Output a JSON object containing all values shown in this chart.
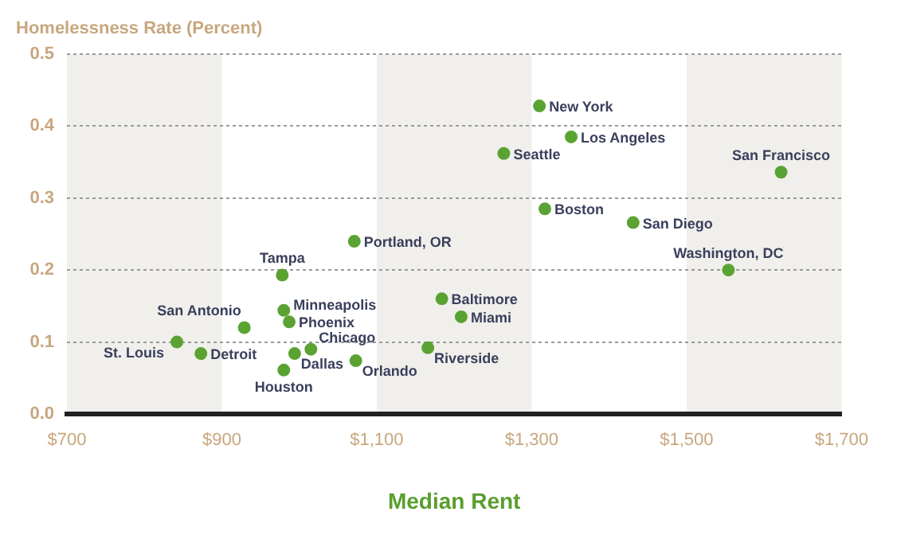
{
  "chart_data": {
    "type": "scatter",
    "ylabel": "Homelessness Rate (Percent)",
    "xlabel": "Median Rent",
    "xlim": [
      700,
      1700
    ],
    "xticks": [
      {
        "value": 700,
        "label": "$700"
      },
      {
        "value": 900,
        "label": "$900"
      },
      {
        "value": 1100,
        "label": "$1,100"
      },
      {
        "value": 1300,
        "label": "$1,300"
      },
      {
        "value": 1500,
        "label": "$1,500"
      },
      {
        "value": 1700,
        "label": "$1,700"
      }
    ],
    "ylim": [
      0,
      0.5
    ],
    "yticks": [
      {
        "value": 0,
        "label": "0.0"
      },
      0.1,
      0.2,
      0.3,
      0.4,
      0.5
    ],
    "grid": "y",
    "marker": "circle",
    "legend": false,
    "x": [
      842,
      873,
      929,
      978,
      980,
      987,
      980,
      994,
      1015,
      1071,
      1073,
      1166,
      1184,
      1209,
      1264,
      1310,
      1317,
      1351,
      1431,
      1554,
      1622
    ],
    "series": [
      {
        "color": "#5aa332",
        "values": [
          0.1,
          0.084,
          0.12,
          0.193,
          0.144,
          0.128,
          0.061,
          0.084,
          0.09,
          0.24,
          0.074,
          0.092,
          0.16,
          0.135,
          0.362,
          0.428,
          0.285,
          0.385,
          0.266,
          0.2,
          0.336
        ]
      }
    ],
    "bands": [
      {
        "axis": "x",
        "from": 700,
        "to": 900,
        "color": "#f0efeb"
      },
      {
        "axis": "x",
        "from": 1100,
        "to": 1300,
        "color": "#f0efeb"
      },
      {
        "axis": "x",
        "from": 1500,
        "to": 1700,
        "color": "#f0efeb"
      }
    ],
    "annotations": [
      {
        "text": "St. Louis",
        "x": 842,
        "y": 0.1
      },
      {
        "text": "Detroit",
        "x": 873,
        "y": 0.084
      },
      {
        "text": "San Antonio",
        "x": 929,
        "y": 0.12
      },
      {
        "text": "Tampa",
        "x": 978,
        "y": 0.193
      },
      {
        "text": "Minneapolis",
        "x": 980,
        "y": 0.144
      },
      {
        "text": "Phoenix",
        "x": 987,
        "y": 0.128
      },
      {
        "text": "Houston",
        "x": 980,
        "y": 0.061
      },
      {
        "text": "Dallas",
        "x": 994,
        "y": 0.084
      },
      {
        "text": "Chicago",
        "x": 1015,
        "y": 0.09
      },
      {
        "text": "Portland, OR",
        "x": 1071,
        "y": 0.24
      },
      {
        "text": "Orlando",
        "x": 1073,
        "y": 0.074
      },
      {
        "text": "Riverside",
        "x": 1166,
        "y": 0.092
      },
      {
        "text": "Baltimore",
        "x": 1184,
        "y": 0.16
      },
      {
        "text": "Miami",
        "x": 1209,
        "y": 0.135
      },
      {
        "text": "Seattle",
        "x": 1264,
        "y": 0.362
      },
      {
        "text": "New York",
        "x": 1310,
        "y": 0.428
      },
      {
        "text": "Boston",
        "x": 1317,
        "y": 0.285
      },
      {
        "text": "Los Angeles",
        "x": 1351,
        "y": 0.385
      },
      {
        "text": "San Diego",
        "x": 1431,
        "y": 0.266
      },
      {
        "text": "Washington, DC",
        "x": 1554,
        "y": 0.2
      },
      {
        "text": "San Francisco",
        "x": 1622,
        "y": 0.336
      }
    ]
  }
}
